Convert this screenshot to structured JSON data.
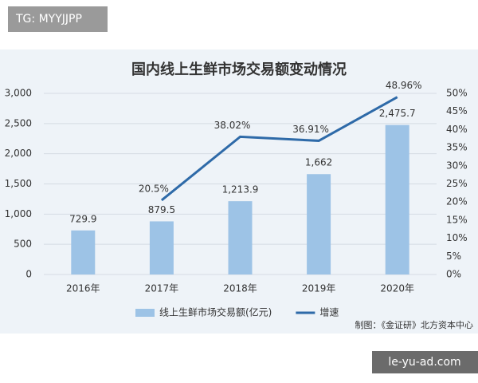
{
  "watermarks": [
    "TG: MYYJJPP",
    "le-yu-ad.com"
  ],
  "chart_data": {
    "type": "bar-line",
    "title": "国内线上生鲜市场交易额变动情况",
    "source": "制图：《金证研》北方资本中心",
    "categories": [
      "2016年",
      "2017年",
      "2018年",
      "2019年",
      "2020年"
    ],
    "series": [
      {
        "name": "线上生鲜市场交易额(亿元)",
        "type": "bar",
        "color": "#9dc3e6",
        "values": [
          729.9,
          879.5,
          1213.9,
          1662,
          2475.7
        ],
        "value_labels": [
          "729.9",
          "879.5",
          "1,213.9",
          "1,662",
          "2,475.7"
        ]
      },
      {
        "name": "增速",
        "type": "line",
        "axis": "y2",
        "color": "#2e6aa8",
        "values": [
          null,
          20.5,
          38.02,
          36.91,
          48.96
        ],
        "value_labels": [
          null,
          "20.5%",
          "38.02%",
          "36.91%",
          "48.96%"
        ]
      }
    ],
    "ylim": [
      0,
      3000
    ],
    "yticks": [
      0,
      500,
      {
        "value": 1000,
        "label": "1,000"
      },
      {
        "value": 1500,
        "label": "1,500"
      },
      {
        "value": 2000,
        "label": "2,000"
      },
      {
        "value": 2500,
        "label": "2,500"
      },
      {
        "value": 3000,
        "label": "3,000"
      }
    ],
    "y2lim": [
      0,
      50
    ],
    "y2ticks": [
      {
        "value": 0,
        "label": "0%"
      },
      {
        "value": 5,
        "label": "5%"
      },
      {
        "value": 10,
        "label": "10%"
      },
      {
        "value": 15,
        "label": "15%"
      },
      {
        "value": 20,
        "label": "20%"
      },
      {
        "value": 25,
        "label": "25%"
      },
      {
        "value": 30,
        "label": "30%"
      },
      {
        "value": 35,
        "label": "35%"
      },
      {
        "value": 40,
        "label": "40%"
      },
      {
        "value": 45,
        "label": "45%"
      },
      {
        "value": 50,
        "label": "50%"
      }
    ],
    "grid": true,
    "legend": "bottom"
  }
}
